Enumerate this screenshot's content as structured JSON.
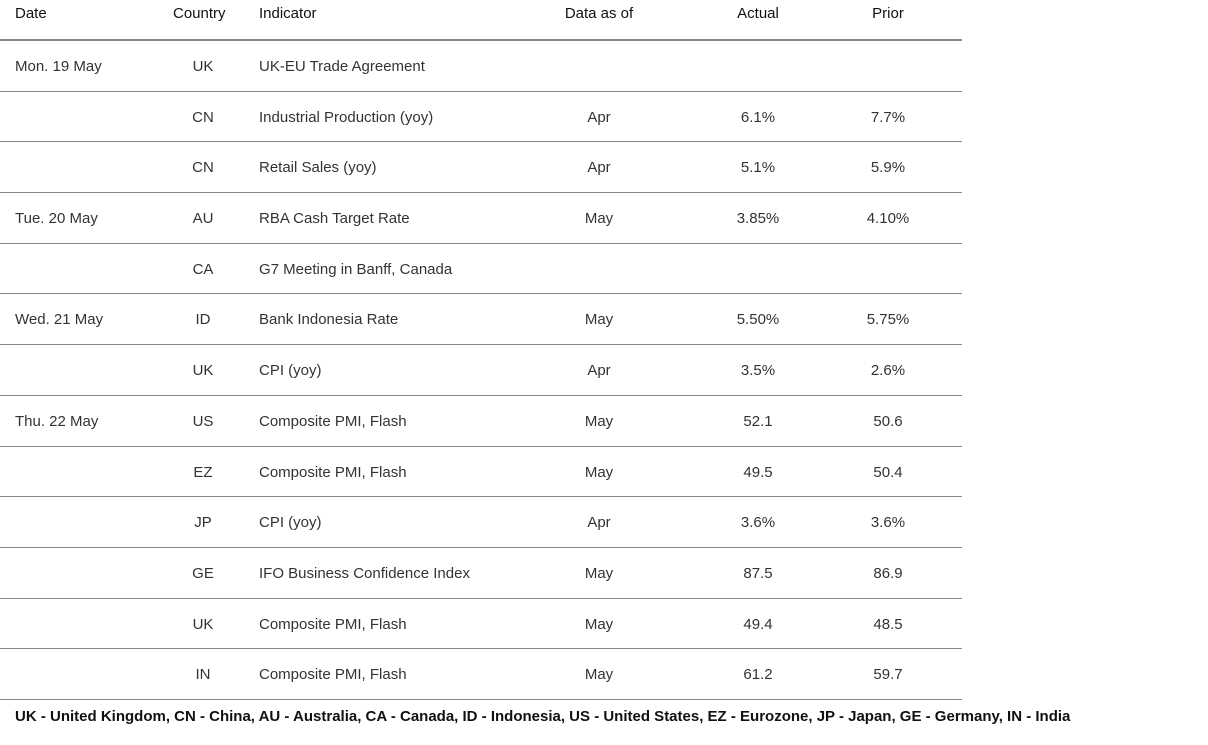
{
  "table": {
    "headers": {
      "date": "Date",
      "country": "Country",
      "indicator": "Indicator",
      "data_as_of": "Data as of",
      "actual": "Actual",
      "prior": "Prior"
    },
    "rows": [
      {
        "date": "Mon. 19 May",
        "country": "UK",
        "indicator": "UK-EU Trade Agreement",
        "data_as_of": "",
        "actual": "",
        "prior": ""
      },
      {
        "date": "",
        "country": "CN",
        "indicator": "Industrial Production (yoy)",
        "data_as_of": "Apr",
        "actual": "6.1%",
        "prior": "7.7%"
      },
      {
        "date": "",
        "country": "CN",
        "indicator": "Retail Sales (yoy)",
        "data_as_of": "Apr",
        "actual": "5.1%",
        "prior": "5.9%"
      },
      {
        "date": "Tue. 20 May",
        "country": "AU",
        "indicator": "RBA Cash Target Rate",
        "data_as_of": "May",
        "actual": "3.85%",
        "prior": "4.10%"
      },
      {
        "date": "",
        "country": "CA",
        "indicator": "G7 Meeting in Banff, Canada",
        "data_as_of": "",
        "actual": "",
        "prior": ""
      },
      {
        "date": "Wed. 21 May",
        "country": "ID",
        "indicator": "Bank Indonesia Rate",
        "data_as_of": "May",
        "actual": "5.50%",
        "prior": "5.75%"
      },
      {
        "date": "",
        "country": "UK",
        "indicator": "CPI (yoy)",
        "data_as_of": "Apr",
        "actual": "3.5%",
        "prior": "2.6%"
      },
      {
        "date": "Thu. 22 May",
        "country": "US",
        "indicator": "Composite PMI, Flash",
        "data_as_of": "May",
        "actual": "52.1",
        "prior": "50.6"
      },
      {
        "date": "",
        "country": "EZ",
        "indicator": "Composite PMI, Flash",
        "data_as_of": "May",
        "actual": "49.5",
        "prior": "50.4"
      },
      {
        "date": "",
        "country": "JP",
        "indicator": "CPI (yoy)",
        "data_as_of": "Apr",
        "actual": "3.6%",
        "prior": "3.6%"
      },
      {
        "date": "",
        "country": "GE",
        "indicator": "IFO Business Confidence Index",
        "data_as_of": "May",
        "actual": "87.5",
        "prior": "86.9"
      },
      {
        "date": "",
        "country": "UK",
        "indicator": "Composite PMI, Flash",
        "data_as_of": "May",
        "actual": "49.4",
        "prior": "48.5"
      },
      {
        "date": "",
        "country": "IN",
        "indicator": "Composite PMI, Flash",
        "data_as_of": "May",
        "actual": "61.2",
        "prior": "59.7"
      }
    ]
  },
  "footnote": "UK - United Kingdom, CN - China, AU - Australia, CA - Canada, ID - Indonesia, US - United States, EZ - Eurozone, JP - Japan, GE - Germany, IN - India"
}
